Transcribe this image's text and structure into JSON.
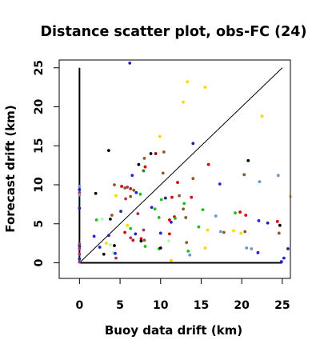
{
  "chart_data": {
    "type": "scatter",
    "title": "Distance scatter plot, obs-FC (24)",
    "xlabel": "Buoy data drift (km)",
    "ylabel": "Forecast drift (km)",
    "xlim": [
      -2.5,
      26
    ],
    "ylim": [
      -2,
      26
    ],
    "xticks": [
      0,
      5,
      10,
      15,
      20,
      25
    ],
    "yticks": [
      0,
      5,
      10,
      15,
      20,
      25
    ],
    "xtick_labels": [
      "0",
      "5",
      "10",
      "15",
      "20",
      "25"
    ],
    "ytick_labels": [
      "0",
      "5",
      "10",
      "15",
      "20",
      "25"
    ],
    "grid": false,
    "legend": "none",
    "reference_lines": [
      {
        "kind": "diagonal",
        "x": [
          0,
          25
        ],
        "y": [
          0,
          25
        ]
      },
      {
        "kind": "vertical",
        "x": [
          0,
          0
        ],
        "y": [
          0,
          25
        ]
      },
      {
        "kind": "horizontal",
        "x": [
          0,
          25
        ],
        "y": [
          0,
          0
        ]
      }
    ],
    "points": [
      {
        "x": 6.2,
        "y": 25.6,
        "color": "#2222dd"
      },
      {
        "x": 13.3,
        "y": 23.2,
        "color": "#ffd400"
      },
      {
        "x": 15.5,
        "y": 22.5,
        "color": "#ffd400"
      },
      {
        "x": 12.8,
        "y": 20.6,
        "color": "#ffd400"
      },
      {
        "x": 22.5,
        "y": 18.8,
        "color": "#ffd400"
      },
      {
        "x": 9.9,
        "y": 16.2,
        "color": "#ffd400"
      },
      {
        "x": 14.0,
        "y": 15.3,
        "color": "#2222aa"
      },
      {
        "x": 3.6,
        "y": 14.4,
        "color": "#000000"
      },
      {
        "x": 8.8,
        "y": 14.0,
        "color": "#000000"
      },
      {
        "x": 9.4,
        "y": 14.0,
        "color": "#8b0000"
      },
      {
        "x": 10.4,
        "y": 14.2,
        "color": "#8b5a2b"
      },
      {
        "x": 20.8,
        "y": 13.1,
        "color": "#000000"
      },
      {
        "x": 8.0,
        "y": 13.4,
        "color": "#8b5a2b"
      },
      {
        "x": 7.3,
        "y": 12.6,
        "color": "#000000"
      },
      {
        "x": 15.9,
        "y": 12.6,
        "color": "#dd0000"
      },
      {
        "x": 8.1,
        "y": 12.3,
        "color": "#dd0000"
      },
      {
        "x": 7.9,
        "y": 11.8,
        "color": "#228b22"
      },
      {
        "x": 6.5,
        "y": 11.2,
        "color": "#2222dd"
      },
      {
        "x": 10.3,
        "y": 11.5,
        "color": "#8b5a2b"
      },
      {
        "x": 20.3,
        "y": 11.3,
        "color": "#8b5a2b"
      },
      {
        "x": 24.5,
        "y": 11.2,
        "color": "#6699cc"
      },
      {
        "x": 14.0,
        "y": 10.8,
        "color": "#8b5a2b"
      },
      {
        "x": 12.1,
        "y": 10.3,
        "color": "#dd0000"
      },
      {
        "x": 17.3,
        "y": 10.1,
        "color": "#2222dd"
      },
      {
        "x": 22.2,
        "y": 10.4,
        "color": "#6699cc"
      },
      {
        "x": 4.3,
        "y": 10.0,
        "color": "#8b5a2b"
      },
      {
        "x": 5.2,
        "y": 9.8,
        "color": "#dd0000"
      },
      {
        "x": 5.6,
        "y": 9.6,
        "color": "#8b5a2b"
      },
      {
        "x": 5.9,
        "y": 9.7,
        "color": "#aa3366"
      },
      {
        "x": 6.3,
        "y": 9.5,
        "color": "#dd0000"
      },
      {
        "x": 6.7,
        "y": 9.3,
        "color": "#8b5a2b"
      },
      {
        "x": 7.0,
        "y": 9.0,
        "color": "#2222dd"
      },
      {
        "x": 7.5,
        "y": 8.8,
        "color": "#22bb22"
      },
      {
        "x": 2.0,
        "y": 8.9,
        "color": "#000000"
      },
      {
        "x": 4.5,
        "y": 8.6,
        "color": "#ffd400"
      },
      {
        "x": 5.7,
        "y": 8.2,
        "color": "#aa3366"
      },
      {
        "x": 6.3,
        "y": 8.5,
        "color": "#8b5a2b"
      },
      {
        "x": 10.6,
        "y": 8.3,
        "color": "#2222aa"
      },
      {
        "x": 11.4,
        "y": 8.4,
        "color": "#dd0000"
      },
      {
        "x": 12.3,
        "y": 8.6,
        "color": "#8b5a2b"
      },
      {
        "x": 13.8,
        "y": 8.4,
        "color": "#dd0000"
      },
      {
        "x": 26.0,
        "y": 8.5,
        "color": "#ffd400"
      },
      {
        "x": 10.1,
        "y": 8.1,
        "color": "#22bb22"
      },
      {
        "x": 12.9,
        "y": 7.6,
        "color": "#22bb22"
      },
      {
        "x": 8.9,
        "y": 7.1,
        "color": "#2222dd"
      },
      {
        "x": 9.3,
        "y": 6.9,
        "color": "#22bb22"
      },
      {
        "x": 12.8,
        "y": 6.9,
        "color": "#8b5a2b"
      },
      {
        "x": 15.2,
        "y": 6.8,
        "color": "#22bb22"
      },
      {
        "x": 5.1,
        "y": 6.6,
        "color": "#2222aa"
      },
      {
        "x": 7.2,
        "y": 6.3,
        "color": "#aa3366"
      },
      {
        "x": 4.0,
        "y": 6.1,
        "color": "#8b5a2b"
      },
      {
        "x": 16.8,
        "y": 6.0,
        "color": "#6699cc"
      },
      {
        "x": 19.2,
        "y": 6.4,
        "color": "#22bb22"
      },
      {
        "x": 19.8,
        "y": 6.5,
        "color": "#dd0000"
      },
      {
        "x": 20.5,
        "y": 6.1,
        "color": "#dd0000"
      },
      {
        "x": 11.7,
        "y": 5.9,
        "color": "#dd0000"
      },
      {
        "x": 11.8,
        "y": 5.7,
        "color": "#22bb22"
      },
      {
        "x": 13.1,
        "y": 5.8,
        "color": "#8b5a2b"
      },
      {
        "x": 9.8,
        "y": 5.8,
        "color": "#22bb22"
      },
      {
        "x": 3.8,
        "y": 5.6,
        "color": "#000000"
      },
      {
        "x": 2.1,
        "y": 5.5,
        "color": "#22bb22"
      },
      {
        "x": 2.8,
        "y": 5.6,
        "color": "#aaffaa"
      },
      {
        "x": 11.1,
        "y": 5.5,
        "color": "#dd0000"
      },
      {
        "x": 11.3,
        "y": 5.2,
        "color": "#2222dd"
      },
      {
        "x": 22.1,
        "y": 5.4,
        "color": "#2222dd"
      },
      {
        "x": 23.2,
        "y": 5.1,
        "color": "#2222aa"
      },
      {
        "x": 24.4,
        "y": 5.3,
        "color": "#dd0000"
      },
      {
        "x": 24.7,
        "y": 4.8,
        "color": "#000000"
      },
      {
        "x": 6.3,
        "y": 4.4,
        "color": "#22bb22"
      },
      {
        "x": 5.9,
        "y": 4.8,
        "color": "#ffd400"
      },
      {
        "x": 14.7,
        "y": 4.6,
        "color": "#22bb22"
      },
      {
        "x": 15.8,
        "y": 4.2,
        "color": "#ffd400"
      },
      {
        "x": 7.9,
        "y": 4.2,
        "color": "#aa3366"
      },
      {
        "x": 5.6,
        "y": 3.9,
        "color": "#dd0000"
      },
      {
        "x": 6.9,
        "y": 3.7,
        "color": "#2222aa"
      },
      {
        "x": 17.4,
        "y": 4.0,
        "color": "#6699cc"
      },
      {
        "x": 17.8,
        "y": 3.9,
        "color": "#8b5a2b"
      },
      {
        "x": 19.0,
        "y": 4.1,
        "color": "#ffd400"
      },
      {
        "x": 19.9,
        "y": 3.8,
        "color": "#ffd400"
      },
      {
        "x": 20.4,
        "y": 4.0,
        "color": "#8b5a2b"
      },
      {
        "x": 24.6,
        "y": 3.8,
        "color": "#8b5a2b"
      },
      {
        "x": 10.0,
        "y": 3.8,
        "color": "#2222dd"
      },
      {
        "x": 11.1,
        "y": 3.7,
        "color": "#dd0000"
      },
      {
        "x": 3.6,
        "y": 3.5,
        "color": "#2222aa"
      },
      {
        "x": 1.8,
        "y": 3.4,
        "color": "#2222dd"
      },
      {
        "x": 6.3,
        "y": 3.2,
        "color": "#aa3366"
      },
      {
        "x": 6.6,
        "y": 2.9,
        "color": "#dd0000"
      },
      {
        "x": 7.6,
        "y": 3.1,
        "color": "#dd0000"
      },
      {
        "x": 7.6,
        "y": 2.8,
        "color": "#000000"
      },
      {
        "x": 8.0,
        "y": 2.9,
        "color": "#8b5a2b"
      },
      {
        "x": 11.0,
        "y": 2.8,
        "color": "#aaffaa"
      },
      {
        "x": 13.2,
        "y": 2.6,
        "color": "#8b5a2b"
      },
      {
        "x": 3.3,
        "y": 2.5,
        "color": "#ffd400"
      },
      {
        "x": 3.8,
        "y": 2.3,
        "color": "#aaffaa"
      },
      {
        "x": 4.3,
        "y": 2.2,
        "color": "#000000"
      },
      {
        "x": 2.5,
        "y": 2.0,
        "color": "#2222aa"
      },
      {
        "x": 8.1,
        "y": 2.1,
        "color": "#22bb22"
      },
      {
        "x": 9.8,
        "y": 1.8,
        "color": "#22bb22"
      },
      {
        "x": 10.0,
        "y": 1.9,
        "color": "#000000"
      },
      {
        "x": 15.5,
        "y": 1.9,
        "color": "#ffd400"
      },
      {
        "x": 20.6,
        "y": 1.9,
        "color": "#6699cc"
      },
      {
        "x": 21.2,
        "y": 1.8,
        "color": "#6699cc"
      },
      {
        "x": 13.4,
        "y": 1.5,
        "color": "#22bb22"
      },
      {
        "x": 4.2,
        "y": 1.3,
        "color": "#aaffaa"
      },
      {
        "x": 4.4,
        "y": 1.2,
        "color": "#2222dd"
      },
      {
        "x": 3.0,
        "y": 1.1,
        "color": "#000000"
      },
      {
        "x": 13.6,
        "y": 1.0,
        "color": "#6699cc"
      },
      {
        "x": 22.0,
        "y": 1.3,
        "color": "#2222dd"
      },
      {
        "x": 25.2,
        "y": 0.6,
        "color": "#2222dd"
      },
      {
        "x": 25.7,
        "y": 1.8,
        "color": "#2222aa"
      },
      {
        "x": 4.5,
        "y": 0.6,
        "color": "#aa3366"
      },
      {
        "x": 11.3,
        "y": 0.3,
        "color": "#ffd400"
      },
      {
        "x": 24.9,
        "y": 0.15,
        "color": "#2222dd"
      },
      {
        "x": 0.0,
        "y": 9.8,
        "color": "#6699cc"
      },
      {
        "x": 0.0,
        "y": 9.4,
        "color": "#2222aa"
      },
      {
        "x": 0.0,
        "y": 9.0,
        "color": "#aa3366"
      },
      {
        "x": 0.0,
        "y": 8.7,
        "color": "#6699cc"
      },
      {
        "x": 0.0,
        "y": 7.0,
        "color": "#2222aa"
      },
      {
        "x": 0.0,
        "y": 2.4,
        "color": "#aa3366"
      },
      {
        "x": 0.0,
        "y": 2.1,
        "color": "#2222aa"
      },
      {
        "x": 0.0,
        "y": 1.8,
        "color": "#aa3366"
      },
      {
        "x": 0.0,
        "y": 1.1,
        "color": "#aa3366"
      },
      {
        "x": 0.0,
        "y": 0.5,
        "color": "#2222dd"
      },
      {
        "x": 0.0,
        "y": 0.1,
        "color": "#aa3366"
      }
    ]
  }
}
